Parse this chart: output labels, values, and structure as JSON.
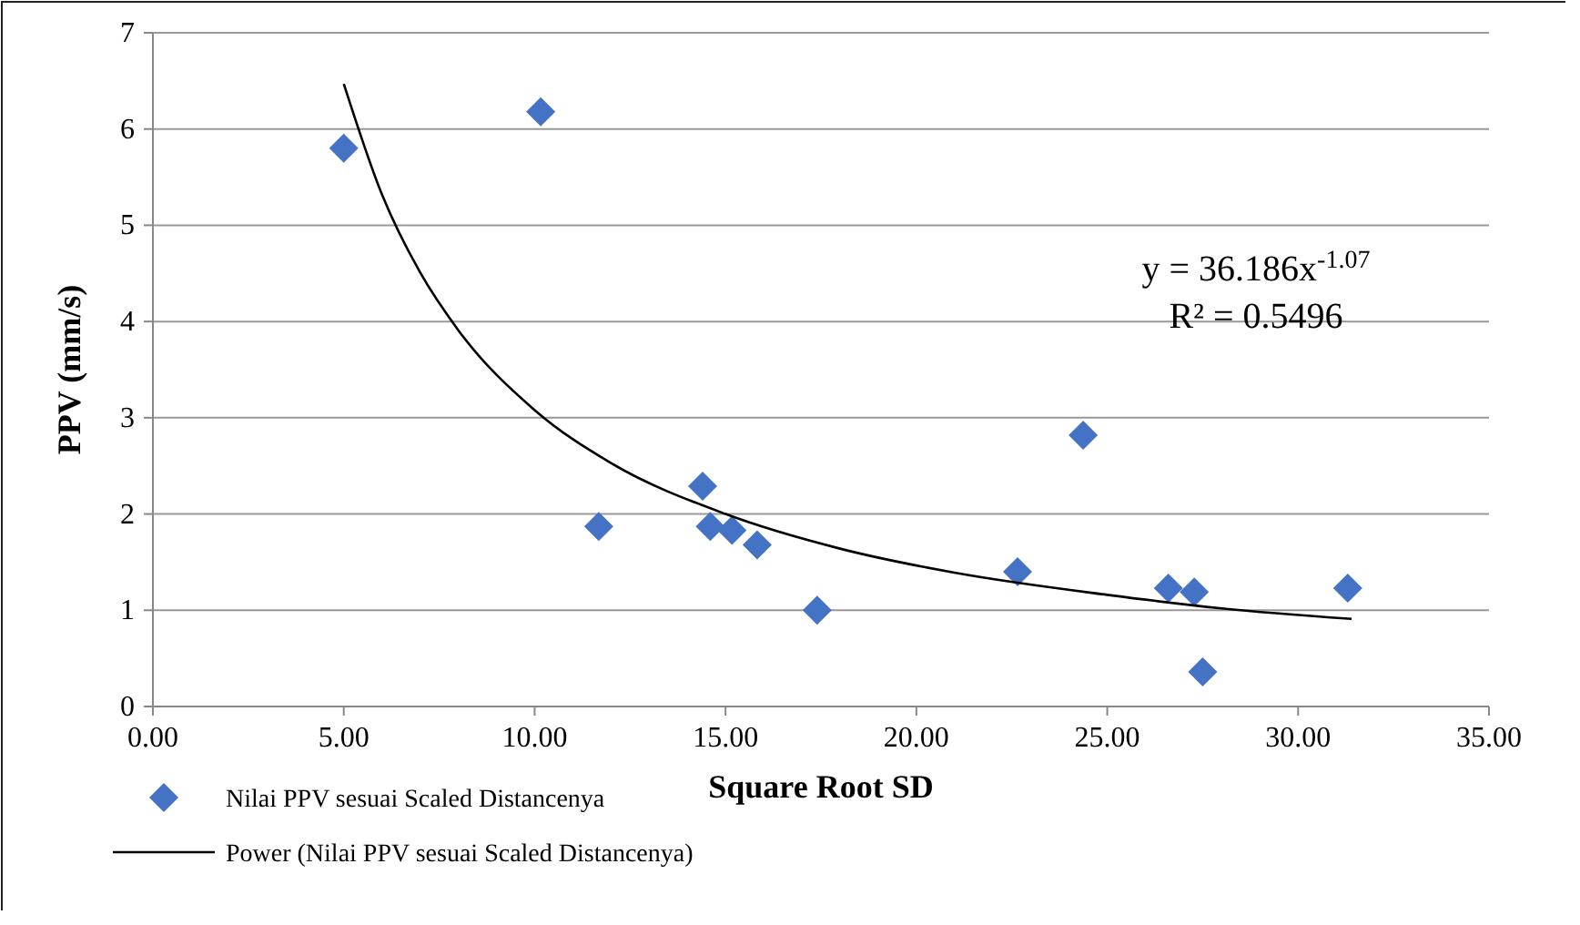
{
  "chart_data": {
    "type": "scatter",
    "xlabel": "Square Root SD",
    "ylabel": "PPV (mm/s)",
    "xlim": [
      0,
      35
    ],
    "xticks": [
      {
        "value": 0,
        "label": "0.00"
      },
      {
        "value": 5,
        "label": "5.00"
      },
      {
        "value": 10,
        "label": "10.00"
      },
      {
        "value": 15,
        "label": "15.00"
      },
      {
        "value": 20,
        "label": "20.00"
      },
      {
        "value": 25,
        "label": "25.00"
      },
      {
        "value": 30,
        "label": "30.00"
      },
      {
        "value": 35,
        "label": "35.00"
      }
    ],
    "ylim": [
      0,
      7
    ],
    "yticks": [
      0,
      1,
      2,
      3,
      4,
      5,
      6,
      7
    ],
    "grid": "y",
    "legend": "bottom",
    "annotations": [
      "y = 36.186x$^{-1.07}$",
      "R² = 0.5496"
    ],
    "series": [
      {
        "name": "Nilai PPV sesuai Scaled Distancenya",
        "marker": "diamond",
        "color": "#4472c4",
        "x": [
          5.0,
          10.16,
          11.68,
          14.4,
          14.6,
          15.17,
          15.83,
          17.4,
          22.65,
          24.37,
          26.6,
          27.28,
          27.5,
          31.3
        ],
        "values": [
          5.8,
          6.18,
          1.87,
          2.29,
          1.87,
          1.83,
          1.68,
          1.0,
          1.4,
          2.82,
          1.23,
          1.19,
          0.36,
          1.23
        ]
      },
      {
        "name": "Power (Nilai PPV sesuai Scaled Distancenya)",
        "type": "line",
        "marker": "none",
        "color": "#000000",
        "x": [
          5,
          6,
          7,
          8,
          10,
          12,
          15,
          18,
          21,
          25,
          28,
          31.4
        ],
        "values": [
          6.47,
          5.32,
          4.51,
          3.91,
          3.08,
          2.53,
          2.0,
          1.64,
          1.39,
          1.16,
          1.02,
          0.91
        ]
      }
    ]
  }
}
